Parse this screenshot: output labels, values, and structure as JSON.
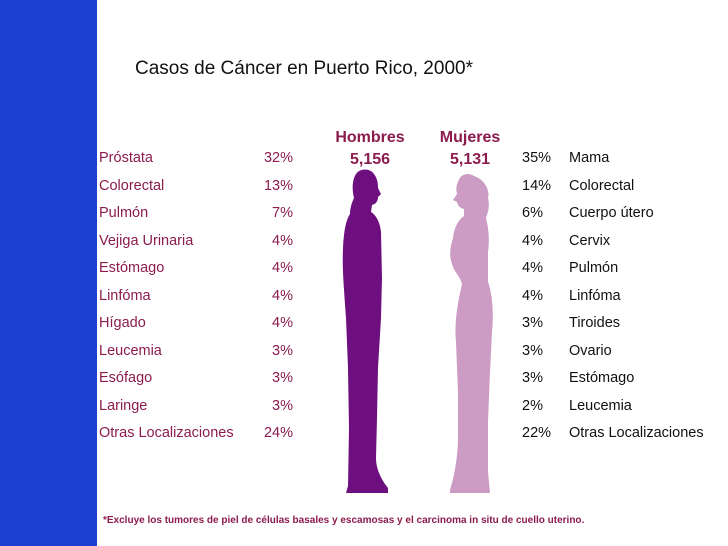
{
  "chart_data": {
    "type": "table",
    "title": "Casos de Cáncer en Puerto Rico, 2000*",
    "men": {
      "label": "Hombres",
      "total": "5,156",
      "rows": [
        {
          "site": "Próstata",
          "pct": "32%"
        },
        {
          "site": "Colorectal",
          "pct": "13%"
        },
        {
          "site": "Pulmón",
          "pct": "7%"
        },
        {
          "site": "Vejiga Urinaria",
          "pct": "4%"
        },
        {
          "site": "Estómago",
          "pct": "4%"
        },
        {
          "site": "Linfóma",
          "pct": "4%"
        },
        {
          "site": "Hígado",
          "pct": "4%"
        },
        {
          "site": "Leucemia",
          "pct": "3%"
        },
        {
          "site": "Esófago",
          "pct": "3%"
        },
        {
          "site": "Laringe",
          "pct": "3%"
        },
        {
          "site": "Otras Localizaciones",
          "pct": "24%"
        }
      ]
    },
    "women": {
      "label": "Mujeres",
      "total": "5,131",
      "rows": [
        {
          "pct": "35%",
          "site": "Mama"
        },
        {
          "pct": "14%",
          "site": "Colorectal"
        },
        {
          "pct": "6%",
          "site": "Cuerpo útero"
        },
        {
          "pct": "4%",
          "site": "Cervix"
        },
        {
          "pct": "4%",
          "site": "Pulmón"
        },
        {
          "pct": "4%",
          "site": "Linfóma"
        },
        {
          "pct": "3%",
          "site": "Tiroides"
        },
        {
          "pct": "3%",
          "site": "Ovario"
        },
        {
          "pct": "3%",
          "site": "Estómago"
        },
        {
          "pct": "2%",
          "site": "Leucemia"
        },
        {
          "pct": "22%",
          "site": "Otras Localizaciones"
        }
      ]
    },
    "footnote": "*Excluye los tumores de piel de células basales y escamosas y el carcinoma in situ de cuello uterino.",
    "colors": {
      "accent_bar": "#1b3fd0",
      "men_text": "#8c1c4e",
      "men_figure": "#6e0f7f",
      "women_figure": "#cc9cc4"
    }
  }
}
